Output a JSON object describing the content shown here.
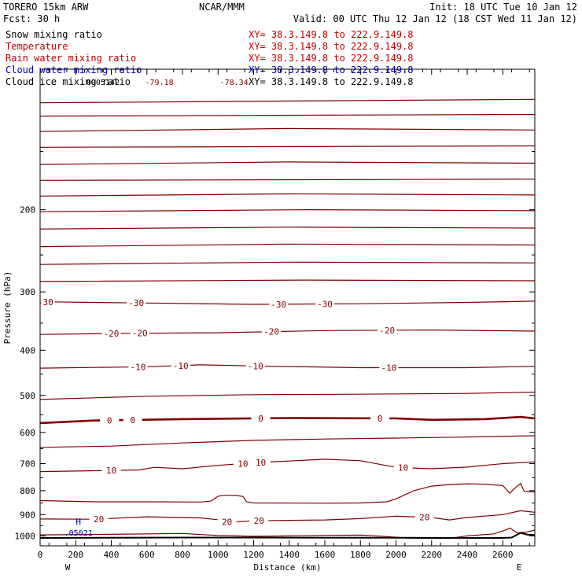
{
  "header": {
    "line1_left": "TORERO  15km ARW",
    "line1_mid": "NCAR/MMM",
    "line1_right": "Init: 18 UTC Tue 10 Jan 12",
    "line2_left": "Fcst:    30 h",
    "line2_right": "Valid: 00 UTC Thu 12 Jan 12 (18 CST Wed 11 Jan 12)"
  },
  "legend": [
    {
      "name": "Snow mixing ratio",
      "xy": "XY=  38.3.149.8 to 222.9.149.8",
      "color": "#000000",
      "xy_color": "#c00000"
    },
    {
      "name": "Temperature",
      "xy": "XY=  38.3.149.8 to 222.9.149.8",
      "color": "#c00000",
      "xy_color": "#c00000"
    },
    {
      "name": "Rain water mixing ratio",
      "xy": "XY=  38.3.149.8 to 222.9.149.8",
      "color": "#c00000",
      "xy_color": "#c00000"
    },
    {
      "name": "Cloud water mixing ratio",
      "xy": "XY=  38.3.149.8 to 222.9.149.8",
      "color": "#0000c0",
      "xy_color": "#0000c0"
    },
    {
      "name": "Cloud ice mixing ratio",
      "xy": "XY=  38.3.149.8 to 222.9.149.8",
      "color": "#000000",
      "xy_color": "#000000"
    }
  ],
  "colors": {
    "temperature": "#800000",
    "cloud_water": "#0000c0",
    "terrain": "#000000"
  },
  "chart_data": {
    "type": "line",
    "xlabel": "Distance (km)",
    "ylabel": "Pressure (hPa)",
    "xlim": [
      0,
      2780
    ],
    "ylim": [
      100,
      1050
    ],
    "y_log_scale": true,
    "x_ticks": [
      0,
      200,
      400,
      600,
      800,
      1000,
      1200,
      1400,
      1600,
      1800,
      2000,
      2200,
      2400,
      2600
    ],
    "y_ticks": [
      200,
      300,
      400,
      500,
      600,
      700,
      800,
      900,
      1000
    ],
    "x_end_labels": {
      "left": "W",
      "right": "E"
    },
    "annotations": {
      "top_left": ".0005142",
      "top_mid1": "-79.18",
      "top_mid2": "-78.34",
      "max_marker": "H",
      "max_value": ".05021"
    },
    "max_point": {
      "x": 215,
      "p": 965
    },
    "isotherms": [
      {
        "label": "",
        "bold": false,
        "points": [
          [
            0,
            118
          ],
          [
            2780,
            116
          ]
        ]
      },
      {
        "label": "",
        "bold": false,
        "points": [
          [
            0,
            126
          ],
          [
            2780,
            125
          ]
        ]
      },
      {
        "label": "",
        "bold": false,
        "points": [
          [
            0,
            136
          ],
          [
            1400,
            134
          ],
          [
            2780,
            135
          ]
        ]
      },
      {
        "label": "",
        "bold": false,
        "points": [
          [
            0,
            147
          ],
          [
            2780,
            146
          ]
        ]
      },
      {
        "label": "",
        "bold": false,
        "points": [
          [
            0,
            160
          ],
          [
            1400,
            158
          ],
          [
            2780,
            159
          ]
        ]
      },
      {
        "label": "",
        "bold": false,
        "points": [
          [
            0,
            173
          ],
          [
            2780,
            172
          ]
        ]
      },
      {
        "label": "",
        "bold": false,
        "points": [
          [
            0,
            187
          ],
          [
            1400,
            185
          ],
          [
            2780,
            186
          ]
        ]
      },
      {
        "label": "",
        "bold": false,
        "points": [
          [
            0,
            202
          ],
          [
            1500,
            200
          ],
          [
            2780,
            201
          ]
        ]
      },
      {
        "label": "",
        "bold": false,
        "points": [
          [
            0,
            220
          ],
          [
            1400,
            218
          ],
          [
            2780,
            219
          ]
        ]
      },
      {
        "label": "",
        "bold": false,
        "points": [
          [
            0,
            240
          ],
          [
            1400,
            237
          ],
          [
            2780,
            238
          ]
        ]
      },
      {
        "label": "",
        "bold": false,
        "points": [
          [
            0,
            262
          ],
          [
            1400,
            259
          ],
          [
            2780,
            260
          ]
        ]
      },
      {
        "label": "",
        "bold": false,
        "points": [
          [
            0,
            285
          ],
          [
            1500,
            283
          ],
          [
            2780,
            284
          ]
        ]
      },
      {
        "label": "-30",
        "bold": false,
        "points": [
          [
            0,
            315
          ],
          [
            600,
            317
          ],
          [
            1200,
            319
          ],
          [
            1800,
            318
          ],
          [
            2400,
            316
          ],
          [
            2780,
            314
          ]
        ]
      },
      {
        "label": "-20",
        "bold": false,
        "points": [
          [
            0,
            370
          ],
          [
            500,
            368
          ],
          [
            1000,
            367
          ],
          [
            1600,
            363
          ],
          [
            2200,
            362
          ],
          [
            2780,
            364
          ]
        ]
      },
      {
        "label": "-10",
        "bold": false,
        "points": [
          [
            0,
            437
          ],
          [
            600,
            434
          ],
          [
            900,
            430
          ],
          [
            1300,
            433
          ],
          [
            1800,
            436
          ],
          [
            2400,
            436
          ],
          [
            2780,
            433
          ]
        ]
      },
      {
        "label": "",
        "bold": false,
        "points": [
          [
            0,
            510
          ],
          [
            600,
            502
          ],
          [
            1200,
            498
          ],
          [
            1800,
            497
          ],
          [
            2400,
            495
          ],
          [
            2780,
            492
          ]
        ]
      },
      {
        "label": "0",
        "bold": true,
        "points": [
          [
            0,
            573
          ],
          [
            300,
            566
          ],
          [
            800,
            562
          ],
          [
            1400,
            559
          ],
          [
            2000,
            560
          ],
          [
            2200,
            564
          ],
          [
            2500,
            562
          ],
          [
            2700,
            556
          ],
          [
            2780,
            560
          ]
        ]
      },
      {
        "label": "",
        "bold": false,
        "points": [
          [
            0,
            646
          ],
          [
            400,
            642
          ],
          [
            800,
            632
          ],
          [
            1200,
            624
          ],
          [
            1600,
            620
          ],
          [
            2000,
            617
          ],
          [
            2400,
            614
          ],
          [
            2780,
            610
          ]
        ]
      },
      {
        "label": "10",
        "bold": false,
        "points": [
          [
            0,
            728
          ],
          [
            400,
            724
          ],
          [
            560,
            722
          ],
          [
            640,
            713
          ],
          [
            800,
            718
          ],
          [
            1000,
            706
          ],
          [
            1200,
            697
          ],
          [
            1600,
            685
          ],
          [
            1800,
            690
          ],
          [
            2000,
            713
          ],
          [
            2200,
            718
          ],
          [
            2400,
            712
          ],
          [
            2600,
            700
          ],
          [
            2780,
            694
          ]
        ]
      },
      {
        "label": "",
        "bold": false,
        "points": [
          [
            0,
            840
          ],
          [
            300,
            845
          ],
          [
            600,
            845
          ],
          [
            900,
            846
          ],
          [
            960,
            842
          ],
          [
            1000,
            822
          ],
          [
            1040,
            818
          ],
          [
            1100,
            819
          ],
          [
            1140,
            823
          ],
          [
            1160,
            845
          ],
          [
            1200,
            850
          ],
          [
            1600,
            851
          ],
          [
            1800,
            850
          ],
          [
            1950,
            845
          ],
          [
            2000,
            833
          ],
          [
            2100,
            800
          ],
          [
            2200,
            782
          ],
          [
            2300,
            776
          ],
          [
            2400,
            773
          ],
          [
            2500,
            775
          ],
          [
            2600,
            780
          ],
          [
            2640,
            810
          ],
          [
            2660,
            795
          ],
          [
            2700,
            772
          ],
          [
            2720,
            802
          ],
          [
            2780,
            805
          ]
        ]
      },
      {
        "label": "20",
        "bold": false,
        "points": [
          [
            0,
            920
          ],
          [
            300,
            921
          ],
          [
            600,
            910
          ],
          [
            900,
            915
          ],
          [
            1000,
            923
          ],
          [
            1060,
            935
          ],
          [
            1200,
            928
          ],
          [
            1400,
            926
          ],
          [
            1600,
            924
          ],
          [
            1800,
            918
          ],
          [
            2000,
            907
          ],
          [
            2200,
            913
          ],
          [
            2300,
            924
          ],
          [
            2400,
            913
          ],
          [
            2600,
            900
          ],
          [
            2700,
            883
          ],
          [
            2780,
            890
          ]
        ]
      },
      {
        "label": "",
        "bold": false,
        "points": [
          [
            0,
            995
          ],
          [
            400,
            992
          ],
          [
            800,
            988
          ],
          [
            1000,
            998
          ],
          [
            1200,
            1002
          ],
          [
            1400,
            1000
          ],
          [
            1600,
            997
          ],
          [
            1800,
            996
          ],
          [
            1950,
            1003
          ],
          [
            2050,
            1010
          ],
          [
            2200,
            1012
          ],
          [
            2300,
            1012
          ],
          [
            2400,
            1000
          ],
          [
            2550,
            990
          ],
          [
            2620,
            970
          ],
          [
            2640,
            962
          ],
          [
            2680,
            985
          ],
          [
            2730,
            982
          ],
          [
            2780,
            972
          ]
        ]
      }
    ],
    "terrain": {
      "points": [
        [
          0,
          1010
        ],
        [
          800,
          1008
        ],
        [
          1200,
          1008
        ],
        [
          2000,
          1009
        ],
        [
          2400,
          1010
        ],
        [
          2600,
          1010
        ],
        [
          2650,
          1008
        ],
        [
          2700,
          985
        ],
        [
          2740,
          994
        ],
        [
          2780,
          996
        ]
      ]
    }
  }
}
